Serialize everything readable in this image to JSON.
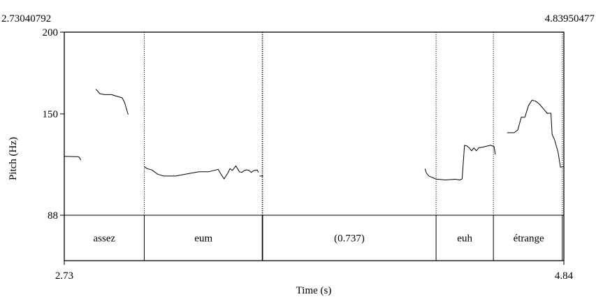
{
  "chart_data": {
    "type": "line",
    "title": "",
    "xlabel": "Time (s)",
    "ylabel": "Pitch (Hz)",
    "xlim": [
      2.73040792,
      4.83950477
    ],
    "ylim": [
      88,
      200
    ],
    "window_start_label": "2.73040792",
    "window_end_label": "4.83950477",
    "x_tick_labels": [
      "2.73",
      "4.84"
    ],
    "y_tick_labels": [
      "88",
      "150",
      "200"
    ],
    "y_ticks": [
      88,
      150,
      200
    ],
    "grid": false,
    "series": [
      {
        "values": [
          [
            [
              2.731,
              124.0
            ],
            [
              2.79,
              123.8
            ],
            [
              2.795,
              123.3
            ],
            [
              2.8,
              121.7
            ]
          ],
          [
            [
              2.864,
              165.1
            ],
            [
              2.88,
              162.4
            ],
            [
              2.9,
              161.8
            ],
            [
              2.93,
              161.8
            ],
            [
              2.95,
              160.9
            ],
            [
              2.975,
              159.8
            ],
            [
              2.985,
              157.0
            ],
            [
              3.0,
              149.6
            ]
          ],
          [
            [
              3.068,
              117.8
            ],
            [
              3.08,
              116.5
            ],
            [
              3.1,
              115.7
            ],
            [
              3.125,
              113.1
            ],
            [
              3.15,
              112.0
            ],
            [
              3.2,
              112.0
            ],
            [
              3.26,
              113.6
            ],
            [
              3.3,
              114.6
            ],
            [
              3.34,
              114.6
            ],
            [
              3.38,
              116.1
            ],
            [
              3.39,
              113.6
            ],
            [
              3.405,
              110.2
            ],
            [
              3.42,
              113.6
            ],
            [
              3.43,
              116.5
            ],
            [
              3.44,
              115.4
            ],
            [
              3.455,
              118.2
            ],
            [
              3.47,
              114.6
            ],
            [
              3.48,
              114.2
            ],
            [
              3.49,
              115.3
            ],
            [
              3.5,
              115.8
            ],
            [
              3.51,
              115.4
            ],
            [
              3.52,
              114.2
            ],
            [
              3.53,
              115.3
            ],
            [
              3.545,
              115.7
            ],
            [
              3.55,
              114.2
            ]
          ],
          [
            [
              3.555,
              112.0
            ],
            [
              3.57,
              112.0
            ]
          ],
          [
            [
              4.253,
              116.5
            ],
            [
              4.26,
              113.6
            ],
            [
              4.27,
              112.0
            ],
            [
              4.3,
              110.1
            ],
            [
              4.34,
              109.6
            ],
            [
              4.38,
              110.0
            ],
            [
              4.4,
              109.6
            ],
            [
              4.41,
              110.2
            ],
            [
              4.42,
              130.8
            ],
            [
              4.43,
              130.4
            ],
            [
              4.44,
              129.2
            ],
            [
              4.45,
              127.4
            ],
            [
              4.46,
              129.2
            ],
            [
              4.47,
              127.4
            ],
            [
              4.48,
              129.2
            ],
            [
              4.5,
              129.8
            ],
            [
              4.53,
              130.8
            ],
            [
              4.545,
              130.0
            ],
            [
              4.55,
              125.2
            ]
          ],
          [
            [
              4.6,
              138.5
            ],
            [
              4.63,
              138.5
            ],
            [
              4.645,
              140.2
            ],
            [
              4.66,
              148.0
            ],
            [
              4.675,
              147.9
            ],
            [
              4.69,
              155.0
            ],
            [
              4.705,
              158.4
            ],
            [
              4.72,
              157.8
            ],
            [
              4.735,
              156.2
            ],
            [
              4.755,
              152.8
            ],
            [
              4.77,
              150.2
            ],
            [
              4.775,
              150.4
            ],
            [
              4.785,
              150.4
            ],
            [
              4.79,
              137.4
            ],
            [
              4.8,
              134.3
            ],
            [
              4.815,
              126.6
            ],
            [
              4.825,
              117.4
            ],
            [
              4.84,
              117.8
            ]
          ]
        ]
      }
    ],
    "tier": {
      "intervals": [
        {
          "text": "assez",
          "start": 2.731,
          "end": 3.068
        },
        {
          "text": "eum",
          "start": 3.068,
          "end": 3.568
        },
        {
          "text": "(0.737)",
          "start": 3.568,
          "end": 4.3
        },
        {
          "text": "euh",
          "start": 4.3,
          "end": 4.542
        },
        {
          "text": "étrange",
          "start": 4.542,
          "end": 4.84
        }
      ],
      "boundaries": [
        3.068,
        3.566,
        3.568,
        4.3,
        4.542,
        4.833
      ]
    }
  }
}
